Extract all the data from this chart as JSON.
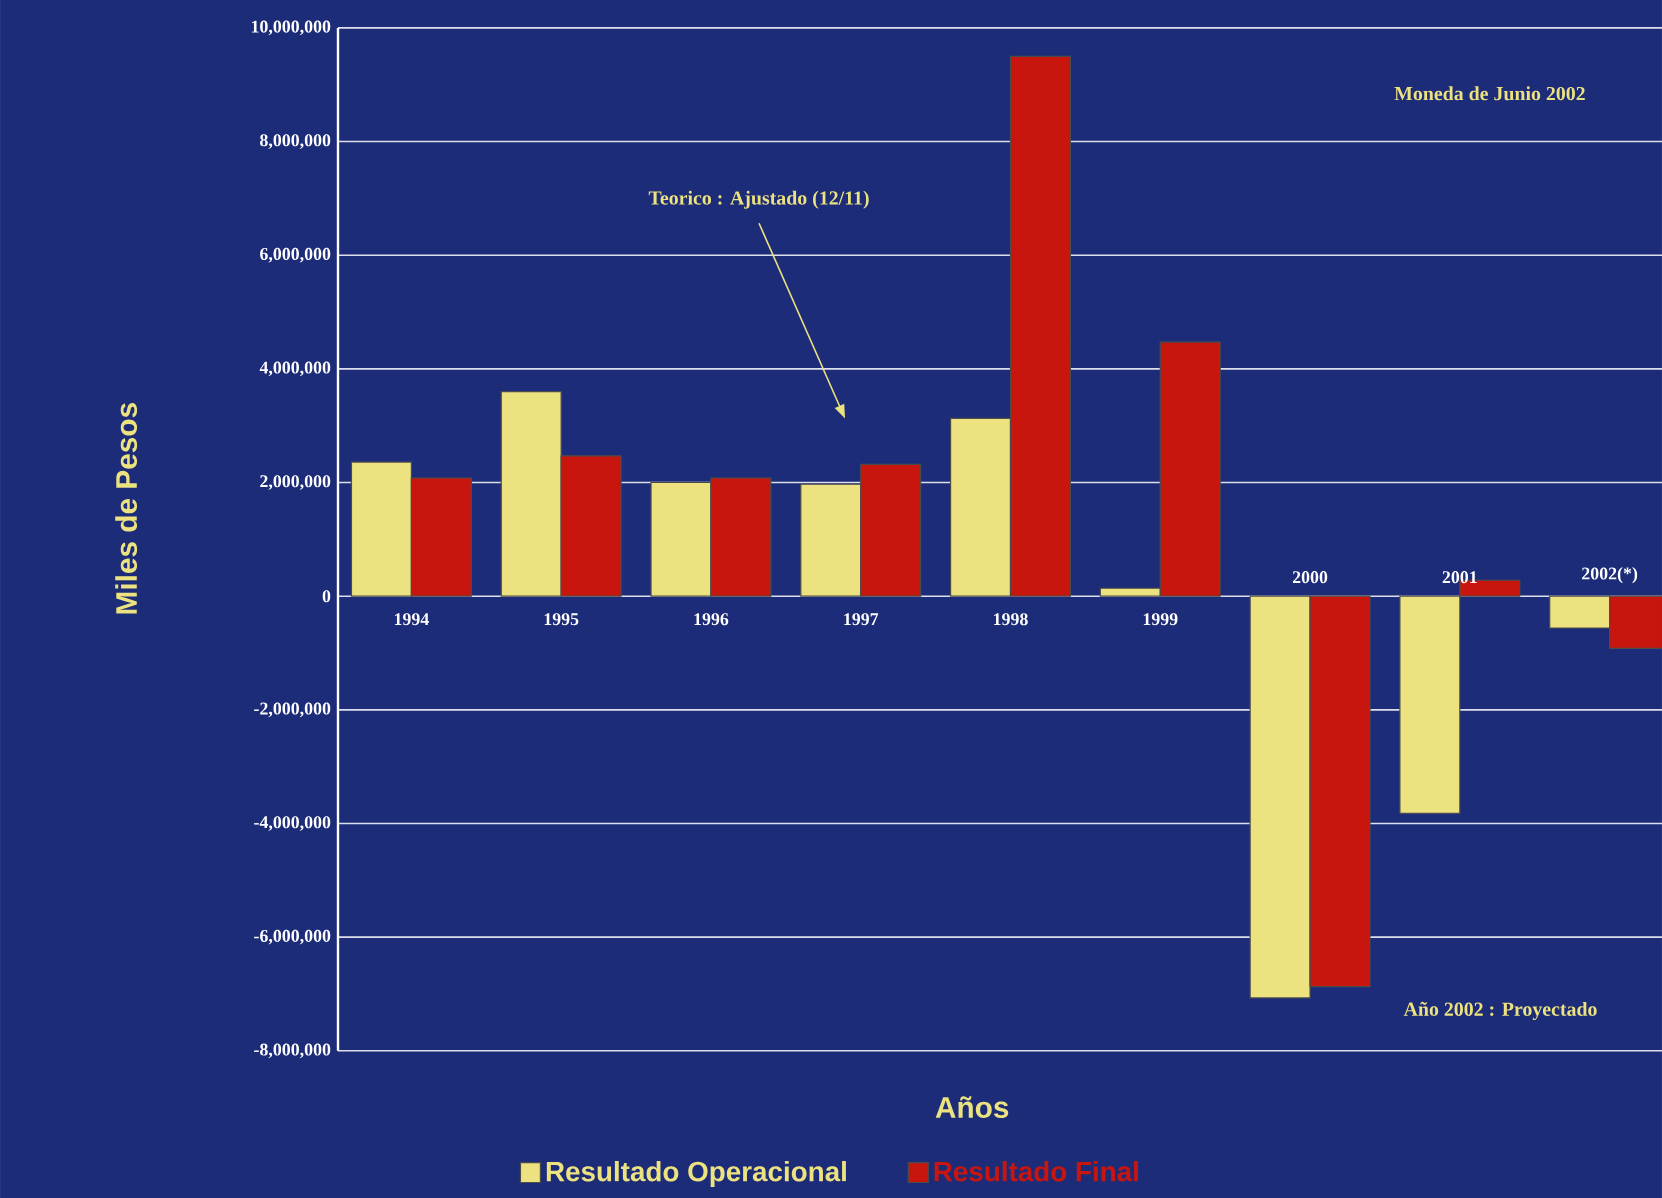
{
  "chart_data": {
    "type": "bar",
    "xlabel": "Años",
    "ylabel": "Miles de Pesos",
    "categories": [
      "1994",
      "1995",
      "1996",
      "1997",
      "1998",
      "1999",
      "2000",
      "2001",
      "2002(*)"
    ],
    "series": [
      {
        "name": "Resultado Operacional",
        "color": "#ece27f",
        "values": [
          2360000,
          3600000,
          2000000,
          1970000,
          3130000,
          140000,
          -7070000,
          -3820000,
          -560000
        ]
      },
      {
        "name": "Resultado Final",
        "color": "#c8160f",
        "values": [
          2080000,
          2470000,
          2080000,
          2320000,
          9500000,
          4470000,
          -6870000,
          280000,
          -920000
        ]
      }
    ],
    "ylim": [
      -8000000,
      10000000
    ],
    "yticks": [
      {
        "value": -8000000,
        "label": "-8,000,000"
      },
      {
        "value": -6000000,
        "label": "-6,000,000"
      },
      {
        "value": -4000000,
        "label": "-4,000,000"
      },
      {
        "value": -2000000,
        "label": "-2,000,000"
      },
      {
        "value": 0,
        "label": "0"
      },
      {
        "value": 2000000,
        "label": "2,000,000"
      },
      {
        "value": 4000000,
        "label": "4,000,000"
      },
      {
        "value": 6000000,
        "label": "6,000,000"
      },
      {
        "value": 8000000,
        "label": "8,000,000"
      },
      {
        "value": 10000000,
        "label": "10,000,000"
      }
    ],
    "grid": "y",
    "legend": "bottom",
    "annotations": [
      "Teorico : Ajustado (12/11)",
      "Moneda de Junio 2002",
      "Año 2002 : Proyectado"
    ]
  }
}
